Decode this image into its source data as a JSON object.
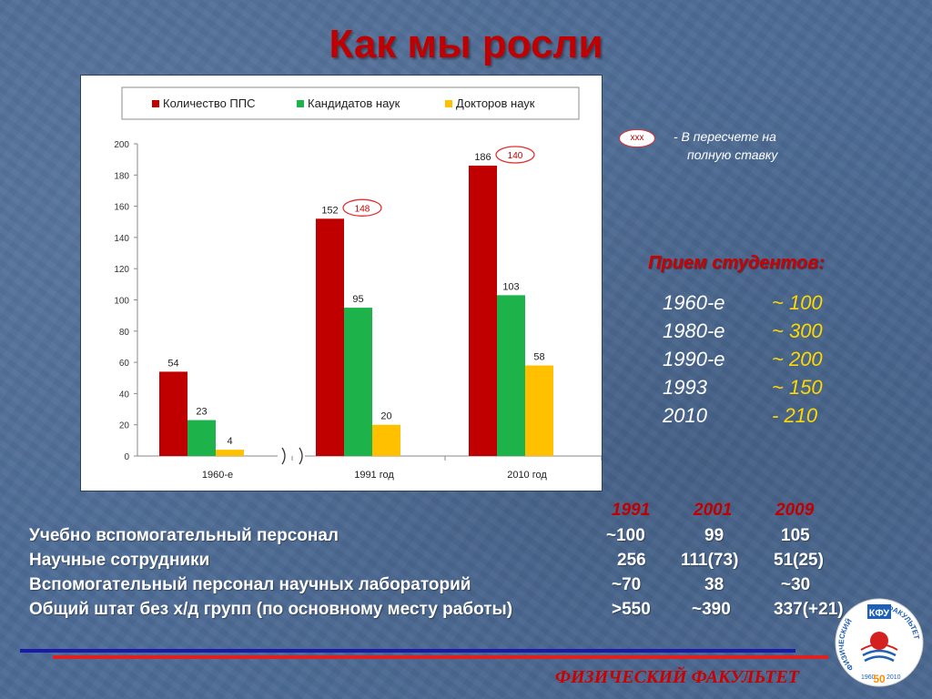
{
  "slide": {
    "title": "Как мы росли",
    "footer": "ФИЗИЧЕСКИЙ ФАКУЛЬТЕТ"
  },
  "chart_data": {
    "type": "bar",
    "categories": [
      "1960-е",
      "1991 год",
      "2010 год"
    ],
    "series": [
      {
        "name": "Количество ППС",
        "values": [
          54,
          152,
          186
        ],
        "color": "#c00000"
      },
      {
        "name": "Кандидатов наук",
        "values": [
          23,
          95,
          103
        ],
        "color": "#1db34a"
      },
      {
        "name": "Докторов наук",
        "values": [
          4,
          20,
          58
        ],
        "color": "#ffc000"
      }
    ],
    "ylim": [
      0,
      200
    ],
    "yticks": [
      0,
      20,
      40,
      60,
      80,
      100,
      120,
      140,
      160,
      180,
      200
    ],
    "grid": false,
    "legend": "top",
    "annotations": [
      {
        "category": "1991 год",
        "label": "148"
      },
      {
        "category": "2010 год",
        "label": "140"
      }
    ],
    "axis_break": "between 1960-е and 1991 год"
  },
  "note": {
    "marker": "xxx",
    "line1": "- В пересчете на",
    "line2": "полную ставку"
  },
  "admission": {
    "title": "Прием студентов:",
    "rows": [
      {
        "period": "1960-е",
        "value": "~ 100"
      },
      {
        "period": "1980-е",
        "value": "~ 300"
      },
      {
        "period": "1990-е",
        "value": "~ 200"
      },
      {
        "period": "1993",
        "value": "~ 150"
      },
      {
        "period": "2010",
        "value": " - 210"
      }
    ]
  },
  "staff": {
    "years": [
      "1991",
      "2001",
      "2009"
    ],
    "rows": [
      {
        "label": "Учебно вспомогательный персонал",
        "v1991": "~100",
        "v2001": "99",
        "v2009": "105"
      },
      {
        "label": "Научные сотрудники",
        "v1991": "256",
        "v2001": "111(73)",
        "v2009": "51(25)"
      },
      {
        "label": "Вспомогательный персонал научных лабораторий",
        "v1991": "~70",
        "v2001": "38",
        "v2009": "~30"
      },
      {
        "label": "Общий штат без х/д групп (по основному месту работы)",
        "v1991": ">550",
        "v2001": "~390",
        "v2009": "337(+21)"
      }
    ]
  },
  "logo": {
    "text_top": "КФУ",
    "text_left": "ФИЗИЧЕСКИЙ",
    "text_right": "ФАКУЛЬТЕТ",
    "year_start": "1960",
    "year_end": "2010",
    "anniversary": "50"
  }
}
